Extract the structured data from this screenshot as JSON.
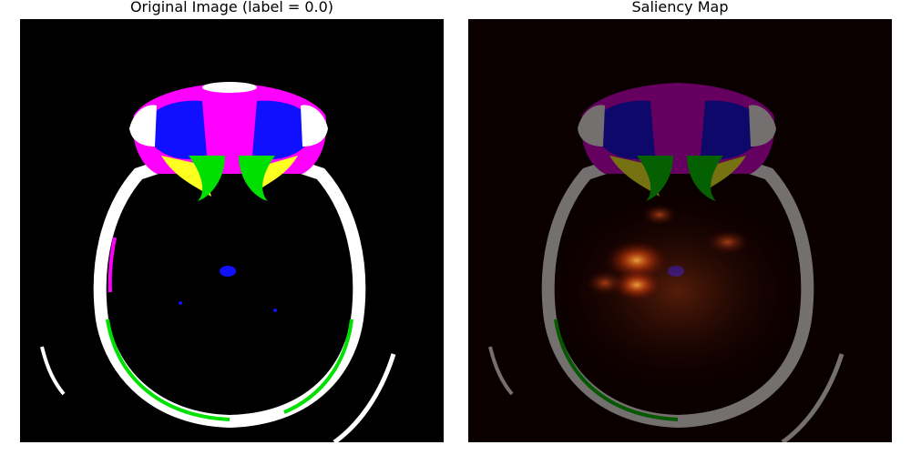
{
  "figure": {
    "panels": [
      {
        "title": "Original Image (label = 0.0)"
      },
      {
        "title": "Saliency Map"
      }
    ]
  },
  "colors": {
    "background": "#000000",
    "saliency_background": "#0b0000",
    "bone": "#ffffff",
    "magenta": "#ff00ff",
    "blue": "#1010ff",
    "green": "#00e000",
    "yellow": "#ffff20",
    "red": "#ff0000",
    "heat": "#ff8020"
  }
}
